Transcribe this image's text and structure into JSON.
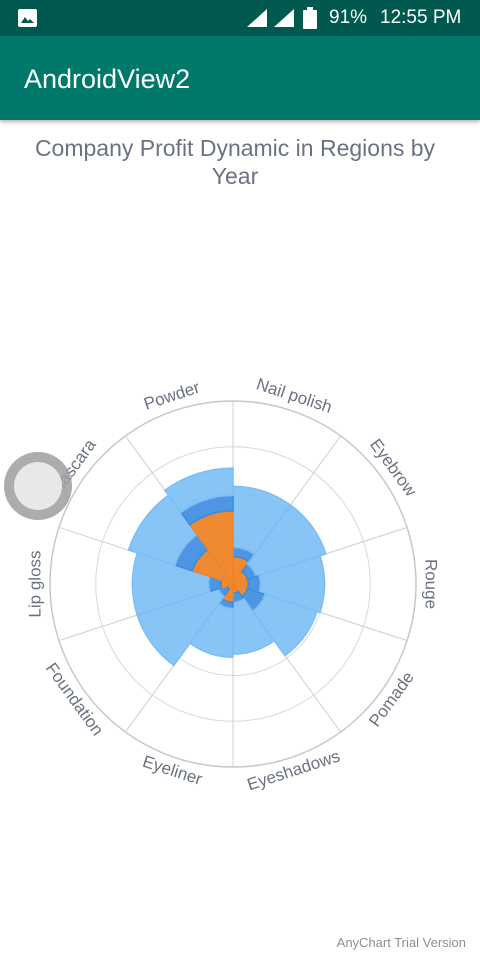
{
  "status_bar": {
    "battery": "91%",
    "time": "12:55 PM"
  },
  "app_bar": {
    "title": "AndroidView2"
  },
  "chart_data": {
    "type": "polar-stacked-column",
    "title": "Company Profit Dynamic in Regions by Year",
    "categories": [
      "Nail polish",
      "Eyebrow",
      "Rouge",
      "Pomade",
      "Eyeshadows",
      "Eyeliner",
      "Foundation",
      "Lip gloss",
      "Mascara",
      "Powder"
    ],
    "series": [
      {
        "values": [
          0.9,
          0.5,
          0.5,
          0.5,
          0.3,
          0.6,
          0.2,
          0.4,
          1.4,
          2.4
        ],
        "color": "#ef8427"
      },
      {
        "values": [
          0.3,
          0.3,
          0.4,
          0.6,
          0.3,
          0.2,
          0.3,
          0.4,
          0.6,
          0.5
        ],
        "color": "#3b8be0"
      },
      {
        "values": [
          2.0,
          2.4,
          2.1,
          1.8,
          1.7,
          1.6,
          2.8,
          2.5,
          1.6,
          0.9
        ],
        "color": "#7bbef5"
      }
    ],
    "yscale_max": 6
  },
  "credits": "AnyChart Trial Version"
}
